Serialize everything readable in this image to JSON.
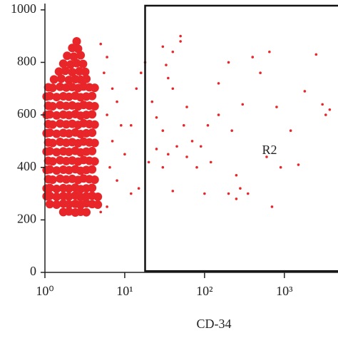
{
  "chart_data": {
    "type": "scatter",
    "x_label": "CD-34",
    "xlim": [
      1,
      4700
    ],
    "ylim": [
      0,
      1024
    ],
    "log_x": true,
    "xticks": [
      {
        "value": 1,
        "label": "10⁰"
      },
      {
        "value": 10,
        "label": "10¹"
      },
      {
        "value": 100,
        "label": "10²"
      },
      {
        "value": 1000,
        "label": "10³"
      }
    ],
    "yticks": [
      0,
      200,
      400,
      600,
      800,
      1000
    ],
    "gate": {
      "label": "R2",
      "x": [
        18,
        4700
      ],
      "y": [
        5,
        1016
      ]
    },
    "series": [
      {
        "color": "#e8262a",
        "x": [
          1.7,
          2.0,
          2.4,
          2.8,
          3.3,
          1.15,
          1.4,
          1.7,
          2.0,
          2.4,
          2.8,
          3.3,
          3.9,
          4.6,
          1.05,
          1.15,
          1.4,
          1.7,
          2.0,
          2.4,
          2.8,
          3.3,
          3.9,
          4.6,
          1.05,
          1.15,
          1.4,
          1.7,
          2.0,
          2.4,
          2.8,
          3.3,
          3.9,
          1.1,
          1.25,
          1.55,
          1.85,
          2.2,
          2.6,
          3.05,
          3.6,
          4.2,
          1.05,
          1.15,
          1.4,
          1.7,
          2.0,
          2.4,
          2.8,
          3.3,
          3.9,
          1.1,
          1.25,
          1.55,
          1.85,
          2.2,
          2.6,
          3.05,
          3.6,
          4.2,
          1.05,
          1.15,
          1.4,
          1.7,
          2.0,
          2.4,
          2.8,
          3.3,
          3.9,
          1.1,
          1.25,
          1.55,
          1.85,
          2.2,
          2.6,
          3.05,
          3.6,
          4.2,
          1.05,
          1.15,
          1.4,
          1.7,
          2.0,
          2.4,
          2.8,
          3.3,
          3.9,
          1.1,
          1.25,
          1.55,
          1.85,
          2.2,
          2.6,
          3.05,
          3.6,
          4.2,
          1.05,
          1.15,
          1.4,
          1.7,
          2.0,
          2.4,
          2.8,
          3.3,
          3.9,
          1.1,
          1.25,
          1.55,
          1.85,
          2.2,
          2.6,
          3.05,
          3.6,
          4.2,
          1.05,
          1.15,
          1.4,
          1.7,
          2.0,
          2.4,
          2.8,
          3.3,
          3.9,
          1.1,
          1.25,
          1.55,
          1.85,
          2.2,
          2.6,
          3.05,
          3.6,
          4.2,
          1.3,
          1.6,
          2.0,
          2.4,
          2.8,
          3.3,
          1.5,
          1.8,
          2.2,
          2.7,
          3.2,
          1.7,
          2.1,
          2.5,
          3.0,
          1.9,
          2.3,
          2.8,
          2.2,
          2.6,
          2.5
        ],
        "values": [
          230,
          232,
          228,
          231,
          229,
          260,
          258,
          262,
          259,
          261,
          257,
          263,
          260,
          258,
          290,
          292,
          288,
          291,
          289,
          293,
          287,
          290,
          292,
          288,
          320,
          322,
          318,
          321,
          319,
          323,
          317,
          320,
          322,
          355,
          353,
          357,
          354,
          356,
          352,
          358,
          355,
          353,
          390,
          392,
          388,
          391,
          389,
          393,
          387,
          390,
          392,
          425,
          423,
          427,
          424,
          426,
          422,
          428,
          425,
          423,
          460,
          462,
          458,
          461,
          459,
          463,
          457,
          460,
          462,
          495,
          493,
          497,
          494,
          496,
          492,
          498,
          495,
          493,
          530,
          532,
          528,
          531,
          529,
          533,
          527,
          530,
          532,
          565,
          563,
          567,
          564,
          566,
          562,
          568,
          565,
          563,
          600,
          602,
          598,
          601,
          599,
          603,
          597,
          600,
          602,
          635,
          633,
          637,
          634,
          636,
          632,
          638,
          635,
          633,
          670,
          672,
          668,
          671,
          669,
          673,
          667,
          670,
          672,
          705,
          703,
          707,
          704,
          706,
          702,
          708,
          705,
          703,
          735,
          738,
          733,
          736,
          734,
          737,
          765,
          768,
          763,
          766,
          764,
          795,
          792,
          797,
          794,
          825,
          822,
          827,
          855,
          852,
          880
        ]
      },
      {
        "color": "#e8262a",
        "x": [
          5,
          6,
          5.5,
          7,
          8,
          6,
          9,
          7,
          10,
          6.5,
          8,
          12,
          15,
          6,
          5,
          12,
          14,
          16,
          18,
          20,
          22,
          25,
          25,
          30,
          30,
          35,
          40,
          40,
          45,
          50,
          50,
          55,
          60,
          40,
          33,
          35,
          30,
          60,
          70,
          100,
          120,
          150,
          150,
          200,
          200,
          220,
          250,
          280,
          300,
          350,
          400,
          500,
          600,
          650,
          700,
          800,
          900,
          1200,
          1500,
          2500,
          3000,
          3300,
          3700,
          1800,
          250,
          80,
          90,
          110
        ],
        "values": [
          870,
          820,
          760,
          700,
          650,
          600,
          560,
          500,
          450,
          400,
          350,
          300,
          320,
          250,
          230,
          560,
          700,
          760,
          800,
          420,
          650,
          470,
          590,
          540,
          400,
          450,
          700,
          310,
          480,
          880,
          900,
          560,
          440,
          840,
          790,
          740,
          860,
          630,
          500,
          300,
          420,
          720,
          600,
          300,
          800,
          540,
          280,
          320,
          640,
          300,
          820,
          760,
          440,
          840,
          250,
          630,
          400,
          540,
          410,
          830,
          640,
          600,
          620,
          690,
          370,
          400,
          480,
          560
        ]
      }
    ]
  }
}
